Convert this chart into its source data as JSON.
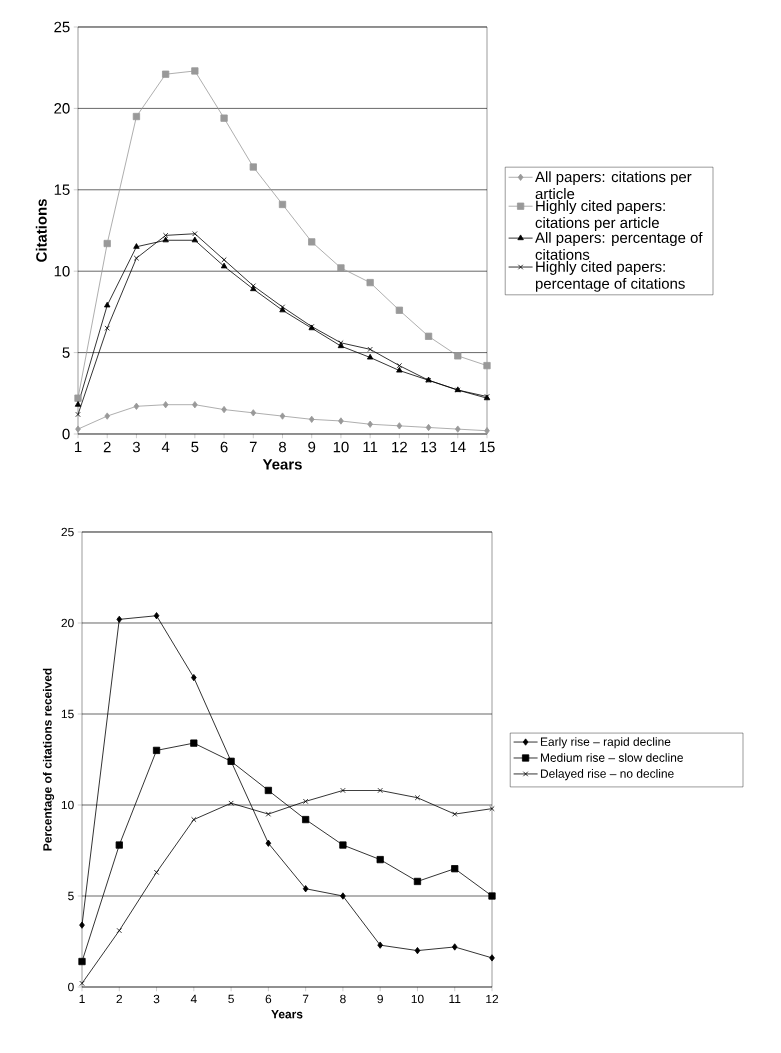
{
  "chart_data": [
    {
      "type": "line",
      "xlabel": "Years",
      "ylabel": "Citations",
      "x": [
        1,
        2,
        3,
        4,
        5,
        6,
        7,
        8,
        9,
        10,
        11,
        12,
        13,
        14,
        15
      ],
      "xlim": [
        1,
        15
      ],
      "ylim": [
        0,
        25
      ],
      "xticks": [
        1,
        2,
        3,
        4,
        5,
        6,
        7,
        8,
        9,
        10,
        11,
        12,
        13,
        14,
        15
      ],
      "yticks": [
        0,
        5,
        10,
        15,
        20,
        25
      ],
      "grid": "y",
      "legend": "right",
      "series": [
        {
          "name": "All papers: citations per article",
          "color": "#999999",
          "marker": "diamond",
          "values": [
            0.3,
            1.1,
            1.7,
            1.8,
            1.8,
            1.5,
            1.3,
            1.1,
            0.9,
            0.8,
            0.6,
            0.5,
            0.4,
            0.3,
            0.2
          ]
        },
        {
          "name": "Highly cited papers: citations per article",
          "color": "#999999",
          "marker": "square",
          "values": [
            2.2,
            11.7,
            19.5,
            22.1,
            22.3,
            19.4,
            16.4,
            14.1,
            11.8,
            10.2,
            9.3,
            7.6,
            6.0,
            4.8,
            4.2
          ]
        },
        {
          "name": "All papers: percentage of citations",
          "color": "#000000",
          "marker": "triangle",
          "values": [
            1.8,
            7.9,
            11.5,
            11.9,
            11.9,
            10.3,
            8.9,
            7.6,
            6.5,
            5.4,
            4.7,
            3.9,
            3.3,
            2.7,
            2.2
          ]
        },
        {
          "name": "Highly cited papers: percentage of citations",
          "color": "#000000",
          "marker": "cross",
          "values": [
            1.2,
            6.5,
            10.8,
            12.2,
            12.3,
            10.7,
            9.1,
            7.8,
            6.6,
            5.6,
            5.2,
            4.2,
            3.3,
            2.7,
            2.3
          ]
        }
      ]
    },
    {
      "type": "line",
      "xlabel": "Years",
      "ylabel": "Percentage of citations received",
      "x": [
        1,
        2,
        3,
        4,
        5,
        6,
        7,
        8,
        9,
        10,
        11,
        12
      ],
      "xlim": [
        1,
        12
      ],
      "ylim": [
        0,
        25
      ],
      "xticks": [
        1,
        2,
        3,
        4,
        5,
        6,
        7,
        8,
        9,
        10,
        11,
        12
      ],
      "yticks": [
        0,
        5,
        10,
        15,
        20,
        25
      ],
      "grid": "y",
      "legend": "right",
      "series": [
        {
          "name": "Early rise – rapid decline",
          "color": "#000000",
          "marker": "diamond",
          "values": [
            3.4,
            20.2,
            20.4,
            17.0,
            12.4,
            7.9,
            5.4,
            5.0,
            2.3,
            2.0,
            2.2,
            1.6
          ]
        },
        {
          "name": "Medium rise – slow decline",
          "color": "#000000",
          "marker": "square",
          "values": [
            1.4,
            7.8,
            13.0,
            13.4,
            12.4,
            10.8,
            9.2,
            7.8,
            7.0,
            5.8,
            6.5,
            5.0
          ]
        },
        {
          "name": "Delayed rise – no decline",
          "color": "#000000",
          "marker": "cross",
          "values": [
            0.2,
            3.1,
            6.3,
            9.2,
            10.1,
            9.5,
            10.2,
            10.8,
            10.8,
            10.4,
            9.5,
            9.8
          ]
        }
      ]
    }
  ]
}
